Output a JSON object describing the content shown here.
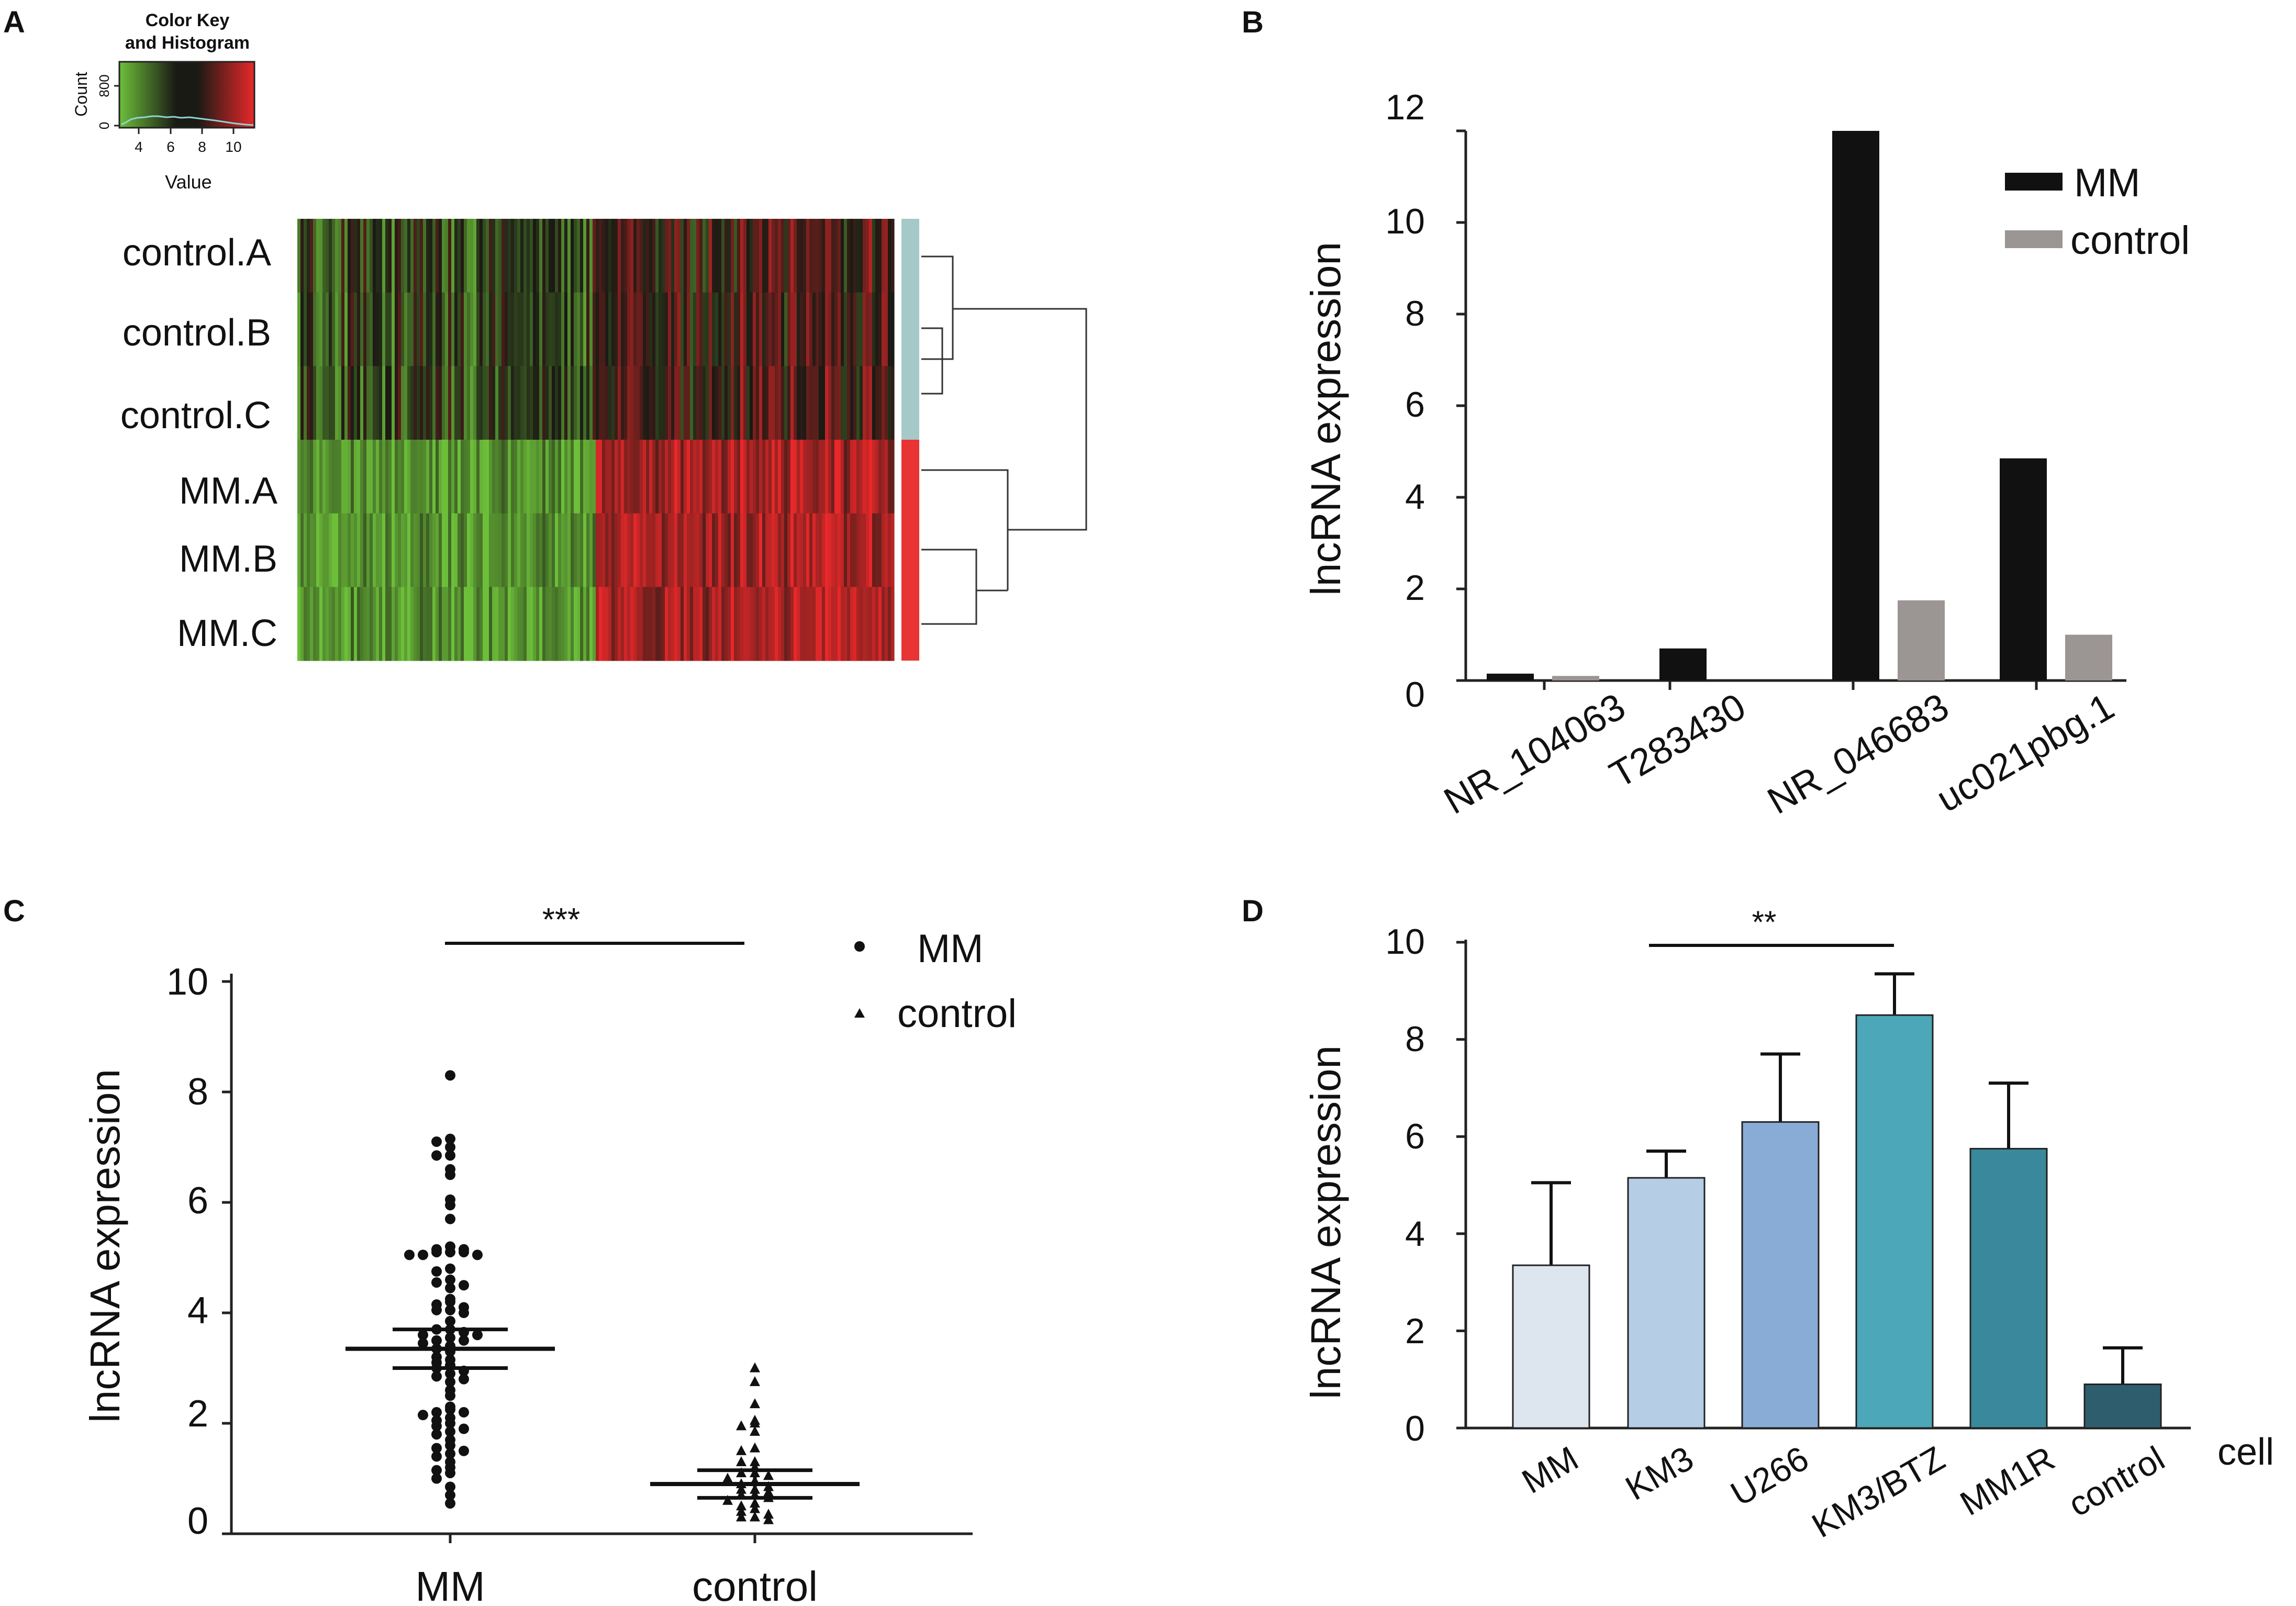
{
  "panels": {
    "A": "A",
    "B": "B",
    "C": "C",
    "D": "D"
  },
  "colors": {
    "low": "#6dbf3a",
    "mid": "#1a1a14",
    "high": "#e8282a",
    "control_bar": "#a5c9c9",
    "mm_bar": "#e83434",
    "mm_series": "#111111",
    "control_series": "#9b9593",
    "d_bars": [
      "#dde5ee",
      "#b6cde6",
      "#88acd6",
      "#4ca7b8",
      "#3a889c",
      "#2e5e6e"
    ]
  },
  "chart_data": [
    {
      "panel": "A",
      "type": "heatmap",
      "color_key": {
        "title_line1": "Color Key",
        "title_line2": "and Histogram",
        "ylabel": "Count",
        "yticks": [
          "0",
          "800"
        ],
        "xticks": [
          "4",
          "6",
          "8",
          "10"
        ],
        "xlabel": "Value",
        "range": [
          3,
          11
        ]
      },
      "rows": [
        "control.A",
        "control.B",
        "control.C",
        "MM.A",
        "MM.B",
        "MM.C"
      ],
      "groups": [
        "control",
        "control",
        "control",
        "MM",
        "MM",
        "MM"
      ]
    },
    {
      "panel": "B",
      "type": "bar",
      "ylabel": "lncRNA expression",
      "yticks": [
        "0",
        "2",
        "4",
        "6",
        "8",
        "10",
        "12"
      ],
      "ylim": [
        0,
        12
      ],
      "categories": [
        "NR_104063",
        "T283430",
        "NR_046683",
        "uc021pbg.1"
      ],
      "series": [
        {
          "name": "MM",
          "values": [
            0.15,
            0.7,
            12.0,
            4.85
          ]
        },
        {
          "name": "control",
          "values": [
            0.1,
            0.0,
            1.75,
            1.0
          ]
        }
      ],
      "legend": [
        "MM",
        "control"
      ]
    },
    {
      "panel": "C",
      "type": "scatter",
      "ylabel": "lncRNA expression",
      "yticks": [
        "0",
        "2",
        "4",
        "6",
        "8",
        "10"
      ],
      "ylim": [
        0,
        10
      ],
      "categories": [
        "MM",
        "control"
      ],
      "legend": [
        "MM",
        "control"
      ],
      "significance": "***",
      "mean": [
        3.35,
        0.9
      ],
      "sem_low": [
        3.0,
        0.65
      ],
      "sem_high": [
        3.7,
        1.15
      ],
      "points_mm": [
        8.3,
        7.15,
        7.1,
        7.0,
        6.85,
        6.85,
        6.6,
        6.5,
        6.05,
        5.95,
        5.7,
        5.2,
        5.15,
        5.15,
        5.1,
        5.1,
        5.1,
        5.05,
        5.05,
        5.05,
        4.8,
        4.75,
        4.6,
        4.55,
        4.5,
        4.45,
        4.25,
        4.2,
        4.15,
        4.1,
        4.05,
        4.05,
        4.0,
        3.85,
        3.7,
        3.7,
        3.65,
        3.6,
        3.6,
        3.55,
        3.5,
        3.5,
        3.45,
        3.4,
        3.35,
        3.3,
        3.2,
        3.15,
        3.1,
        3.05,
        3.0,
        2.95,
        2.9,
        2.85,
        2.8,
        2.75,
        2.6,
        2.5,
        2.3,
        2.25,
        2.2,
        2.2,
        2.15,
        2.1,
        2.05,
        2.0,
        1.95,
        1.9,
        1.85,
        1.8,
        1.7,
        1.6,
        1.55,
        1.5,
        1.45,
        1.4,
        1.3,
        1.2,
        1.15,
        1.1,
        1.0,
        0.85,
        0.7,
        0.55
      ],
      "points_control": [
        3.0,
        2.75,
        2.35,
        2.05,
        2.0,
        1.95,
        1.85,
        1.55,
        1.5,
        1.3,
        1.3,
        1.2,
        1.1,
        1.1,
        1.05,
        1.0,
        0.95,
        0.9,
        0.85,
        0.8,
        0.8,
        0.75,
        0.7,
        0.7,
        0.65,
        0.6,
        0.55,
        0.5,
        0.45,
        0.4,
        0.35,
        0.3,
        0.3,
        0.25
      ]
    },
    {
      "panel": "D",
      "type": "bar",
      "ylabel": "lncRNA expression",
      "yticks": [
        "0",
        "2",
        "4",
        "6",
        "8",
        "10"
      ],
      "ylim": [
        0,
        10
      ],
      "xlabel": "cell",
      "categories": [
        "MM",
        "KM3",
        "U266",
        "KM3/BTZ",
        "MM1R",
        "control"
      ],
      "values": [
        3.35,
        5.15,
        6.3,
        8.5,
        5.75,
        0.9
      ],
      "errors": [
        1.7,
        0.55,
        1.4,
        0.85,
        1.35,
        0.75
      ],
      "significance": "**"
    }
  ]
}
